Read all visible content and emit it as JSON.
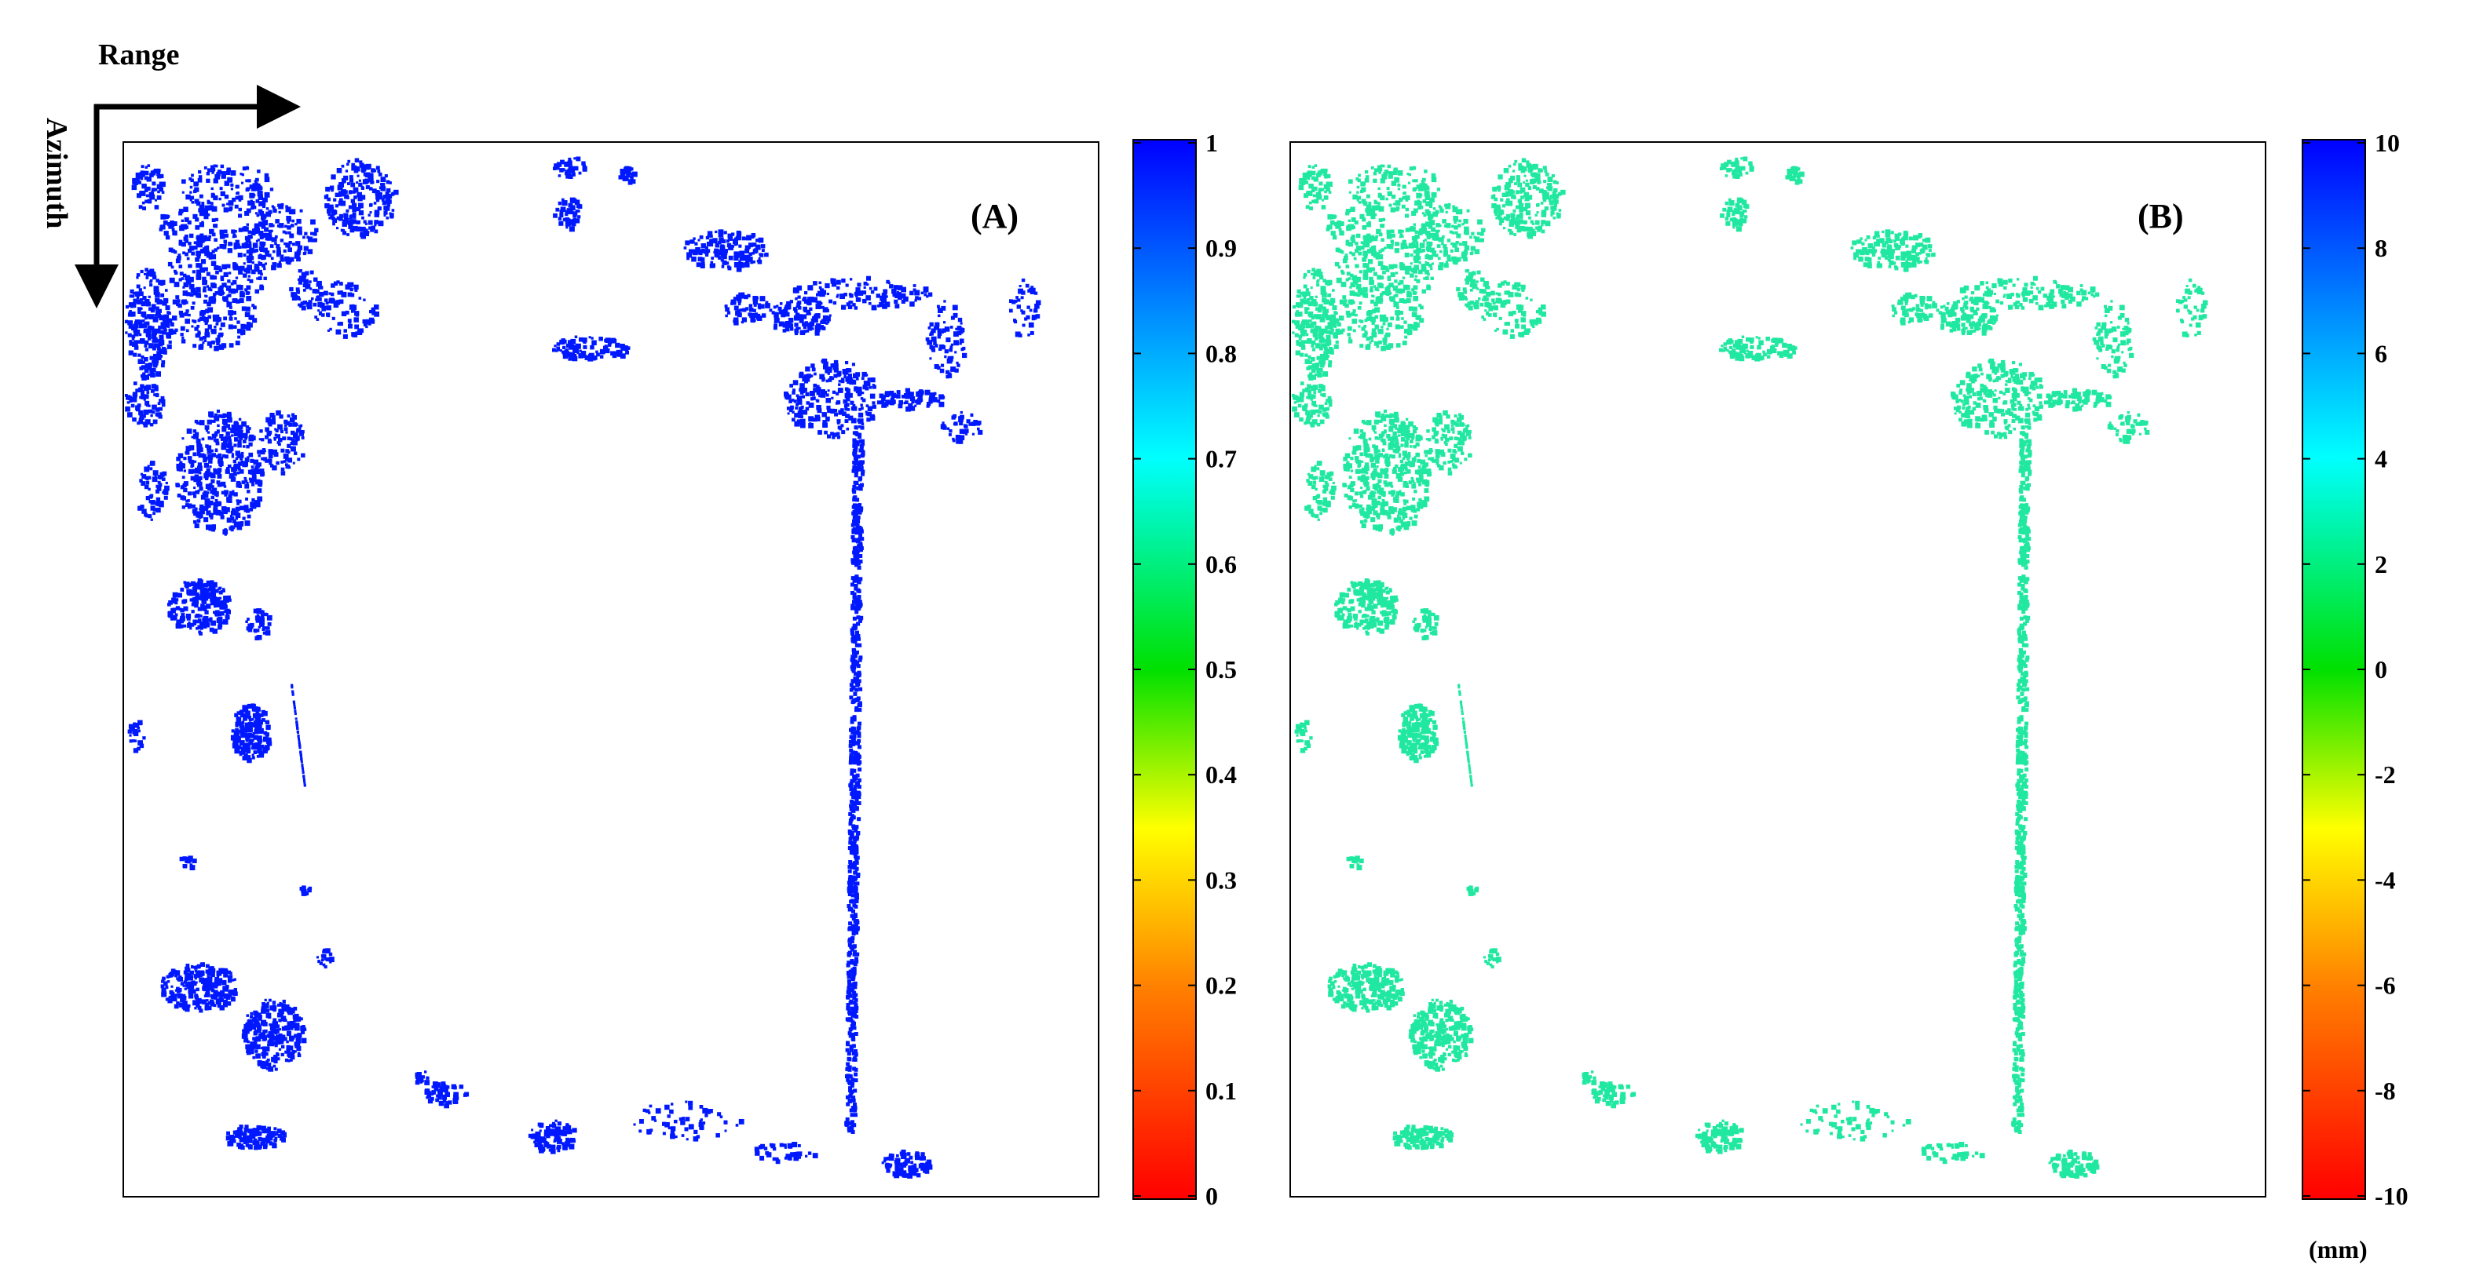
{
  "directions": {
    "range_label": "Range",
    "azimuth_label": "Azimuth"
  },
  "panels": [
    {
      "label": "(A)",
      "colorbar": {
        "ticks": [
          "1",
          "0.9",
          "0.8",
          "0.7",
          "0.6",
          "0.5",
          "0.4",
          "0.3",
          "0.2",
          "0.1",
          "0"
        ],
        "range": [
          0,
          1
        ],
        "unit": ""
      },
      "point_color": "#0018ff"
    },
    {
      "label": "(B)",
      "colorbar": {
        "ticks": [
          "10",
          "8",
          "6",
          "4",
          "2",
          "0",
          "-2",
          "-4",
          "-6",
          "-8",
          "-10"
        ],
        "range": [
          -10,
          10
        ],
        "unit": "(mm)"
      },
      "point_color": "#21e8a0"
    }
  ],
  "colormap": [
    "#ff0000",
    "#ff8000",
    "#ffff00",
    "#00e000",
    "#00ffff",
    "#0000ff"
  ]
}
